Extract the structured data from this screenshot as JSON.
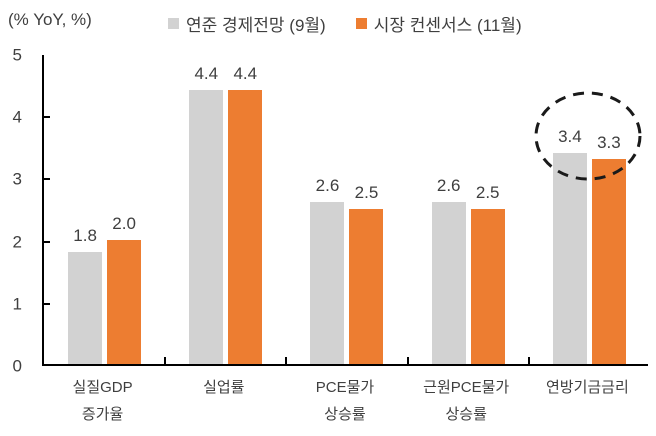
{
  "chart_data": {
    "type": "bar",
    "title": "",
    "unit_label": "(% YoY, %)",
    "categories": [
      "실질GDP\n증가율",
      "실업률",
      "PCE물가\n상승률",
      "근원PCE물가\n상승률",
      "연방기금금리"
    ],
    "series": [
      {
        "name": "연준 경제전망 (9월)",
        "color": "#d2d2d2",
        "values": [
          1.8,
          4.4,
          2.6,
          2.6,
          3.4
        ]
      },
      {
        "name": "시장 컨센서스 (11월)",
        "color": "#ed7d31",
        "values": [
          2.0,
          4.4,
          2.5,
          2.5,
          3.3
        ]
      }
    ],
    "value_label_decimals": 1,
    "ylim": [
      0,
      5
    ],
    "y_ticks": [
      0,
      1,
      2,
      3,
      4,
      5
    ],
    "grid": false,
    "legend_position": "top",
    "annotation": {
      "type": "dashed-ellipse",
      "target_category": "연방기금금리",
      "values_highlighted": [
        3.4,
        3.3
      ],
      "color": "#1a1a1a"
    },
    "axis_color": "#000000",
    "text_color": "#3f3f3f"
  }
}
